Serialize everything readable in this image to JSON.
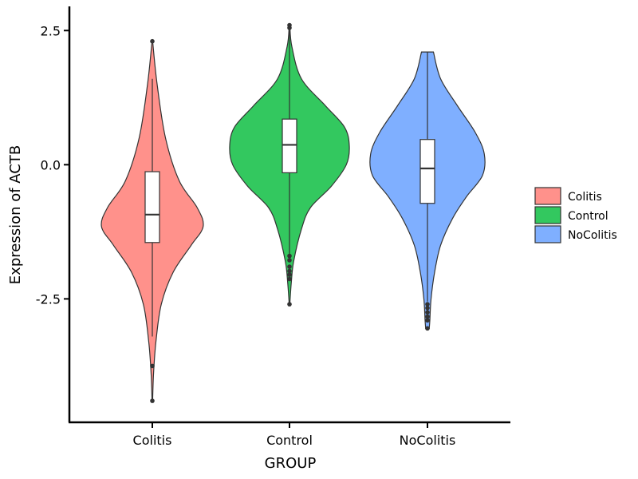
{
  "chart_data": {
    "type": "violin",
    "title": "",
    "xlabel": "GROUP",
    "ylabel": "Expression of ACTB",
    "ylim": [
      -4.8,
      2.95
    ],
    "yticks": [
      2.5,
      0.0,
      -2.5
    ],
    "ytick_labels": [
      "2.5",
      "0.0",
      "-2.5"
    ],
    "categories": [
      "Colitis",
      "Control",
      "NoColitis"
    ],
    "legend": {
      "position": "right",
      "entries": [
        "Colitis",
        "Control",
        "NoColitis"
      ]
    },
    "grid": false,
    "series": [
      {
        "name": "Colitis",
        "color": "#FF918B",
        "violin_min": -4.4,
        "violin_max": 2.3,
        "density_profile": [
          [
            2.3,
            0.005
          ],
          [
            1.5,
            0.08
          ],
          [
            0.5,
            0.22
          ],
          [
            -0.3,
            0.45
          ],
          [
            -0.8,
            0.75
          ],
          [
            -1.15,
            0.85
          ],
          [
            -1.5,
            0.65
          ],
          [
            -2.0,
            0.35
          ],
          [
            -2.6,
            0.15
          ],
          [
            -3.3,
            0.06
          ],
          [
            -3.9,
            0.02
          ],
          [
            -4.4,
            0.005
          ]
        ],
        "box": {
          "q1": -1.45,
          "median": -0.93,
          "q3": -0.13,
          "whisker_low": -3.2,
          "whisker_high": 1.6
        },
        "outliers": [
          2.3,
          -3.75,
          -4.4
        ]
      },
      {
        "name": "Control",
        "color": "#33C85F",
        "violin_min": -2.6,
        "violin_max": 2.6,
        "density_profile": [
          [
            2.6,
            0.005
          ],
          [
            2.2,
            0.04
          ],
          [
            1.6,
            0.2
          ],
          [
            1.1,
            0.6
          ],
          [
            0.7,
            0.92
          ],
          [
            0.35,
            1.0
          ],
          [
            0.0,
            0.95
          ],
          [
            -0.4,
            0.7
          ],
          [
            -0.8,
            0.35
          ],
          [
            -1.2,
            0.2
          ],
          [
            -1.8,
            0.07
          ],
          [
            -2.2,
            0.03
          ],
          [
            -2.6,
            0.005
          ]
        ],
        "box": {
          "q1": -0.15,
          "median": 0.37,
          "q3": 0.85,
          "whisker_low": -1.7,
          "whisker_high": 2.5
        },
        "outliers": [
          2.6,
          2.55,
          -1.7,
          -1.78,
          -1.9,
          -1.98,
          -2.05,
          -2.13,
          -2.6
        ]
      },
      {
        "name": "NoColitis",
        "color": "#7FAFFF",
        "violin_min": -3.05,
        "violin_max": 2.1,
        "density_profile": [
          [
            2.1,
            0.1
          ],
          [
            1.6,
            0.22
          ],
          [
            1.1,
            0.5
          ],
          [
            0.6,
            0.8
          ],
          [
            0.2,
            0.95
          ],
          [
            -0.2,
            0.92
          ],
          [
            -0.6,
            0.65
          ],
          [
            -1.0,
            0.42
          ],
          [
            -1.5,
            0.22
          ],
          [
            -2.0,
            0.12
          ],
          [
            -2.5,
            0.06
          ],
          [
            -2.9,
            0.04
          ],
          [
            -3.05,
            0.03
          ]
        ],
        "box": {
          "q1": -0.72,
          "median": -0.07,
          "q3": 0.47,
          "whisker_low": -2.55,
          "whisker_high": 2.1
        },
        "outliers": [
          -2.6,
          -2.67,
          -2.75,
          -2.83,
          -2.9,
          -3.05
        ]
      }
    ]
  }
}
